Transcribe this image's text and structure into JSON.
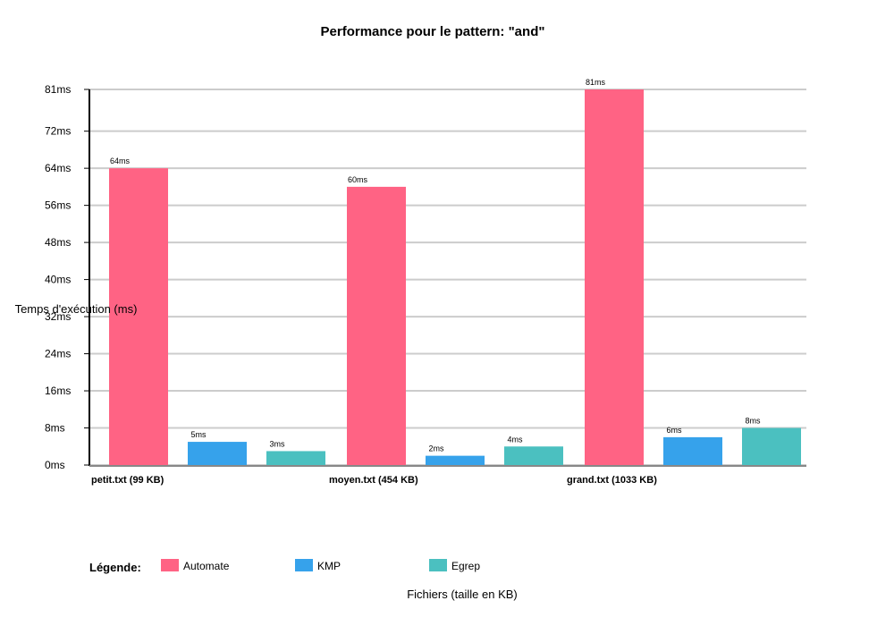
{
  "chart_data": {
    "type": "bar",
    "title": "Performance pour le pattern: \"and\"",
    "xlabel": "Fichiers (taille en KB)",
    "ylabel": "Temps d'exécution (ms)",
    "categories": [
      "petit.txt (99 KB)",
      "moyen.txt (454 KB)",
      "grand.txt (1033 KB)"
    ],
    "series": [
      {
        "name": "Automate",
        "values": [
          64,
          60,
          81
        ],
        "value_labels": [
          "64ms",
          "60ms",
          "81ms"
        ],
        "color": "#ff6384"
      },
      {
        "name": "KMP",
        "values": [
          5,
          2,
          6
        ],
        "value_labels": [
          "5ms",
          "2ms",
          "6ms"
        ],
        "color": "#36a2eb"
      },
      {
        "name": "Egrep",
        "values": [
          3,
          4,
          8
        ],
        "value_labels": [
          "3ms",
          "4ms",
          "8ms"
        ],
        "color": "#4bc0c0"
      }
    ],
    "ylim": [
      0,
      81
    ],
    "yticks": [
      0,
      8,
      16,
      24,
      32,
      40,
      48,
      56,
      64,
      72,
      81
    ],
    "ytick_labels": [
      "0ms",
      "8ms",
      "16ms",
      "24ms",
      "32ms",
      "40ms",
      "48ms",
      "56ms",
      "64ms",
      "72ms",
      "81ms"
    ],
    "grid": true,
    "legend": {
      "title": "Légende:",
      "placement": "bottom"
    }
  }
}
